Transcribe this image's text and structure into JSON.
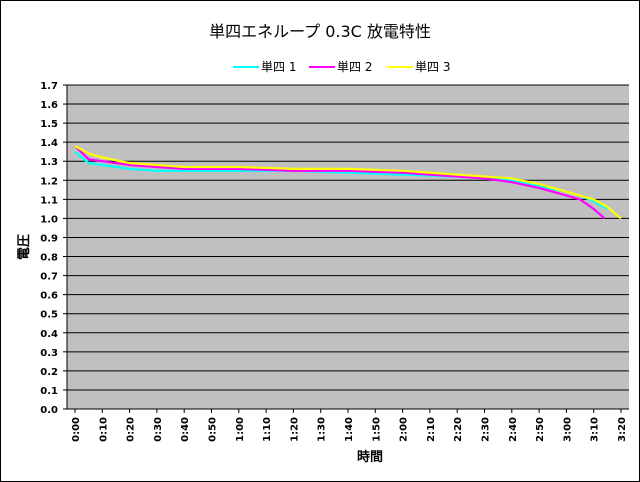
{
  "chart_data": {
    "type": "line",
    "title": "単四エネループ 0.3C 放電特性",
    "xlabel": "時間",
    "ylabel": "電圧",
    "ylim": [
      0.0,
      1.7
    ],
    "ystep": 0.1,
    "yticks": [
      "0.0",
      "0.1",
      "0.2",
      "0.3",
      "0.4",
      "0.5",
      "0.6",
      "0.7",
      "0.8",
      "0.9",
      "1.0",
      "1.1",
      "1.2",
      "1.3",
      "1.4",
      "1.5",
      "1.6",
      "1.7"
    ],
    "categories": [
      "0:00",
      "0:10",
      "0:20",
      "0:30",
      "0:40",
      "0:50",
      "1:00",
      "1:10",
      "1:20",
      "1:30",
      "1:40",
      "1:50",
      "2:00",
      "2:10",
      "2:20",
      "2:30",
      "2:40",
      "2:50",
      "3:00",
      "3:10",
      "3:20"
    ],
    "grid": true,
    "legend_position": "top",
    "plot_background": "#c0c0c0",
    "series": [
      {
        "name": "単四 1",
        "color": "#00ffff",
        "points": [
          [
            0,
            1.35
          ],
          [
            5,
            1.29
          ],
          [
            10,
            1.28
          ],
          [
            20,
            1.26
          ],
          [
            30,
            1.25
          ],
          [
            40,
            1.25
          ],
          [
            60,
            1.25
          ],
          [
            80,
            1.25
          ],
          [
            100,
            1.24
          ],
          [
            120,
            1.23
          ],
          [
            140,
            1.22
          ],
          [
            150,
            1.21
          ],
          [
            160,
            1.2
          ],
          [
            170,
            1.17
          ],
          [
            180,
            1.14
          ],
          [
            185,
            1.12
          ],
          [
            190,
            1.09
          ],
          [
            195,
            1.05
          ]
        ]
      },
      {
        "name": "単四 2",
        "color": "#ff00ff",
        "points": [
          [
            0,
            1.38
          ],
          [
            5,
            1.31
          ],
          [
            10,
            1.3
          ],
          [
            20,
            1.28
          ],
          [
            30,
            1.27
          ],
          [
            40,
            1.26
          ],
          [
            60,
            1.26
          ],
          [
            80,
            1.25
          ],
          [
            100,
            1.25
          ],
          [
            120,
            1.24
          ],
          [
            140,
            1.22
          ],
          [
            150,
            1.21
          ],
          [
            160,
            1.19
          ],
          [
            170,
            1.16
          ],
          [
            180,
            1.12
          ],
          [
            185,
            1.1
          ],
          [
            190,
            1.05
          ],
          [
            194,
            1.0
          ]
        ]
      },
      {
        "name": "単四 3",
        "color": "#ffff00",
        "points": [
          [
            0,
            1.38
          ],
          [
            5,
            1.34
          ],
          [
            10,
            1.32
          ],
          [
            20,
            1.29
          ],
          [
            30,
            1.28
          ],
          [
            40,
            1.27
          ],
          [
            60,
            1.27
          ],
          [
            80,
            1.26
          ],
          [
            100,
            1.26
          ],
          [
            120,
            1.25
          ],
          [
            140,
            1.23
          ],
          [
            150,
            1.22
          ],
          [
            160,
            1.21
          ],
          [
            170,
            1.18
          ],
          [
            180,
            1.14
          ],
          [
            190,
            1.1
          ],
          [
            195,
            1.06
          ],
          [
            200,
            1.0
          ]
        ]
      }
    ]
  }
}
